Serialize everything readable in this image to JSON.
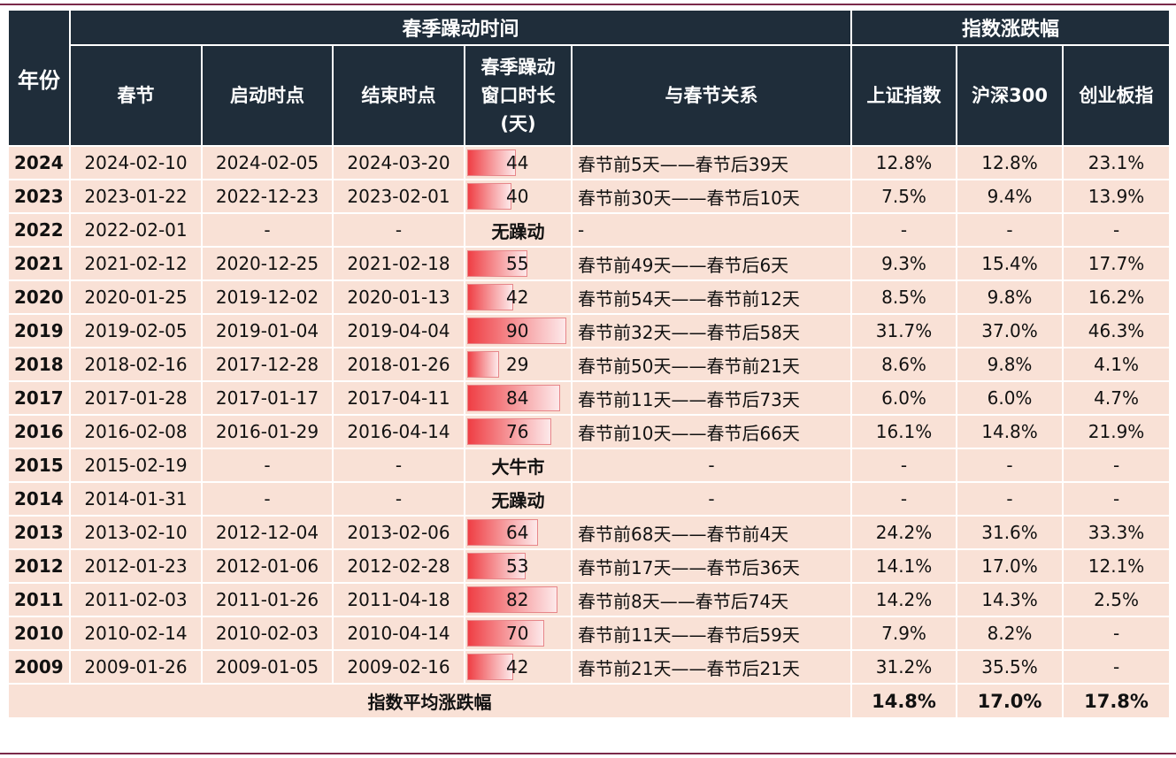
{
  "header": {
    "year": "年份",
    "group_window": "春季躁动时间",
    "group_index": "指数涨跌幅",
    "spring": "春节",
    "start": "启动时点",
    "end": "结束时点",
    "duration_line1": "春季躁动",
    "duration_line2": "窗口时长",
    "duration_line3": "(天)",
    "relation": "与春节关系",
    "sh": "上证指数",
    "hs300": "沪深300",
    "cyb": "创业板指"
  },
  "bar_max_days": 90,
  "rows": [
    {
      "year": "2024",
      "spring": "2024-02-10",
      "start": "2024-02-05",
      "end": "2024-03-20",
      "days": 44,
      "label": "44",
      "relation": "春节前5天——春节后39天",
      "sh": "12.8%",
      "hs300": "12.8%",
      "cyb": "23.1%"
    },
    {
      "year": "2023",
      "spring": "2023-01-22",
      "start": "2022-12-23",
      "end": "2023-02-01",
      "days": 40,
      "label": "40",
      "relation": "春节前30天——春节后10天",
      "sh": "7.5%",
      "hs300": "9.4%",
      "cyb": "13.9%"
    },
    {
      "year": "2022",
      "spring": "2022-02-01",
      "start": "-",
      "end": "-",
      "days": null,
      "label": "无躁动",
      "relation": "-",
      "sh": "-",
      "hs300": "-",
      "cyb": "-"
    },
    {
      "year": "2021",
      "spring": "2021-02-12",
      "start": "2020-12-25",
      "end": "2021-02-18",
      "days": 55,
      "label": "55",
      "relation": "春节前49天——春节后6天",
      "sh": "9.3%",
      "hs300": "15.4%",
      "cyb": "17.7%"
    },
    {
      "year": "2020",
      "spring": "2020-01-25",
      "start": "2019-12-02",
      "end": "2020-01-13",
      "days": 42,
      "label": "42",
      "relation": "春节前54天——春节前12天",
      "sh": "8.5%",
      "hs300": "9.8%",
      "cyb": "16.2%"
    },
    {
      "year": "2019",
      "spring": "2019-02-05",
      "start": "2019-01-04",
      "end": "2019-04-04",
      "days": 90,
      "label": "90",
      "relation": "春节前32天——春节后58天",
      "sh": "31.7%",
      "hs300": "37.0%",
      "cyb": "46.3%"
    },
    {
      "year": "2018",
      "spring": "2018-02-16",
      "start": "2017-12-28",
      "end": "2018-01-26",
      "days": 29,
      "label": "29",
      "relation": "春节前50天——春节前21天",
      "sh": "8.6%",
      "hs300": "9.8%",
      "cyb": "4.1%"
    },
    {
      "year": "2017",
      "spring": "2017-01-28",
      "start": "2017-01-17",
      "end": "2017-04-11",
      "days": 84,
      "label": "84",
      "relation": "春节前11天——春节后73天",
      "sh": "6.0%",
      "hs300": "6.0%",
      "cyb": "4.7%"
    },
    {
      "year": "2016",
      "spring": "2016-02-08",
      "start": "2016-01-29",
      "end": "2016-04-14",
      "days": 76,
      "label": "76",
      "relation": "春节前10天——春节后66天",
      "sh": "16.1%",
      "hs300": "14.8%",
      "cyb": "21.9%"
    },
    {
      "year": "2015",
      "spring": "2015-02-19",
      "start": "-",
      "end": "-",
      "days": null,
      "label": "大牛市",
      "relation": "-",
      "sh": "-",
      "hs300": "-",
      "cyb": "-"
    },
    {
      "year": "2014",
      "spring": "2014-01-31",
      "start": "-",
      "end": "-",
      "days": null,
      "label": "无躁动",
      "relation": "-",
      "sh": "-",
      "hs300": "-",
      "cyb": "-"
    },
    {
      "year": "2013",
      "spring": "2013-02-10",
      "start": "2012-12-04",
      "end": "2013-02-06",
      "days": 64,
      "label": "64",
      "relation": "春节前68天——春节前4天",
      "sh": "24.2%",
      "hs300": "31.6%",
      "cyb": "33.3%"
    },
    {
      "year": "2012",
      "spring": "2012-01-23",
      "start": "2012-01-06",
      "end": "2012-02-28",
      "days": 53,
      "label": "53",
      "relation": "春节前17天——春节后36天",
      "sh": "14.1%",
      "hs300": "17.0%",
      "cyb": "12.1%"
    },
    {
      "year": "2011",
      "spring": "2011-02-03",
      "start": "2011-01-26",
      "end": "2011-04-18",
      "days": 82,
      "label": "82",
      "relation": "春节前8天——春节后74天",
      "sh": "14.2%",
      "hs300": "14.3%",
      "cyb": "2.5%"
    },
    {
      "year": "2010",
      "spring": "2010-02-14",
      "start": "2010-02-03",
      "end": "2010-04-14",
      "days": 70,
      "label": "70",
      "relation": "春节前11天——春节后59天",
      "sh": "7.9%",
      "hs300": "8.2%",
      "cyb": "-"
    },
    {
      "year": "2009",
      "spring": "2009-01-26",
      "start": "2009-01-05",
      "end": "2009-02-16",
      "days": 42,
      "label": "42",
      "relation": "春节前21天——春节后21天",
      "sh": "31.2%",
      "hs300": "35.5%",
      "cyb": "-"
    }
  ],
  "average": {
    "label": "指数平均涨跌幅",
    "sh": "14.8%",
    "hs300": "17.0%",
    "cyb": "17.8%"
  }
}
